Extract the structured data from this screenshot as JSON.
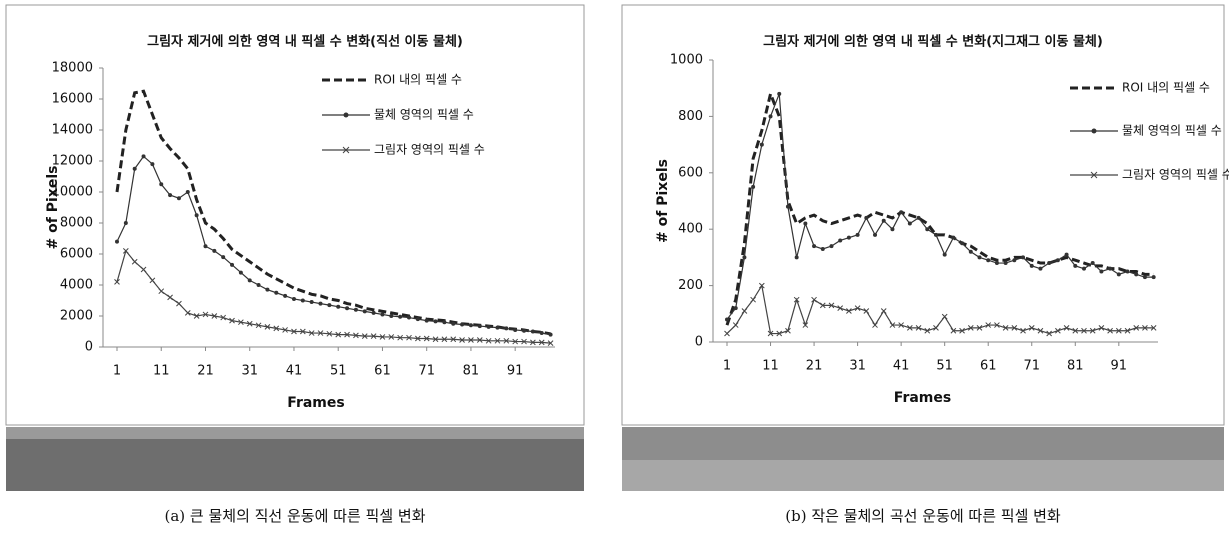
{
  "chart_data": [
    {
      "type": "line",
      "title": "그림자 제거에 의한 영역 내 픽셀 수 변화(직선 이동 물체)",
      "xlabel": "Frames",
      "ylabel": "# of Pixels",
      "caption": "(a) 큰 물체의 직선 운동에 따른 픽셀 변화",
      "legend": "upper right",
      "xlim": [
        1,
        100
      ],
      "xticks": [
        1,
        11,
        21,
        31,
        41,
        51,
        61,
        71,
        81,
        91
      ],
      "ylim": [
        0,
        18000
      ],
      "yticks": [
        0,
        2000,
        4000,
        6000,
        8000,
        10000,
        12000,
        14000,
        16000,
        18000
      ],
      "x": [
        1,
        3,
        5,
        7,
        9,
        11,
        13,
        15,
        17,
        19,
        21,
        23,
        25,
        27,
        29,
        31,
        33,
        35,
        37,
        39,
        41,
        43,
        45,
        47,
        49,
        51,
        53,
        55,
        57,
        59,
        61,
        63,
        65,
        67,
        69,
        71,
        73,
        75,
        77,
        79,
        81,
        83,
        85,
        87,
        89,
        91,
        93,
        95,
        97,
        99
      ],
      "series": [
        {
          "name": "ROI 내의 픽셀 수",
          "color": "#222222",
          "dash": true,
          "marker": "none",
          "values": [
            10000,
            14000,
            16400,
            16500,
            15000,
            13500,
            12800,
            12200,
            11500,
            9500,
            8000,
            7600,
            7000,
            6300,
            5900,
            5500,
            5100,
            4700,
            4400,
            4100,
            3800,
            3600,
            3400,
            3300,
            3100,
            3000,
            2800,
            2700,
            2500,
            2400,
            2300,
            2200,
            2100,
            2000,
            1900,
            1800,
            1750,
            1700,
            1600,
            1500,
            1450,
            1400,
            1350,
            1300,
            1200,
            1150,
            1100,
            1000,
            950,
            850
          ]
        },
        {
          "name": "물체 영역의 픽셀 수",
          "color": "#333333",
          "dash": false,
          "marker": "circle",
          "values": [
            6800,
            8000,
            11500,
            12300,
            11800,
            10500,
            9800,
            9600,
            10000,
            8500,
            6500,
            6200,
            5800,
            5300,
            4800,
            4300,
            4000,
            3700,
            3500,
            3300,
            3100,
            3000,
            2900,
            2800,
            2700,
            2600,
            2500,
            2400,
            2300,
            2200,
            2100,
            2000,
            1950,
            1900,
            1800,
            1700,
            1650,
            1600,
            1500,
            1450,
            1400,
            1350,
            1300,
            1250,
            1200,
            1100,
            1050,
            1000,
            900,
            800
          ]
        },
        {
          "name": "그림자 영역의 픽셀 수",
          "color": "#444444",
          "dash": false,
          "marker": "x",
          "values": [
            4200,
            6200,
            5500,
            5000,
            4300,
            3600,
            3200,
            2800,
            2200,
            2000,
            2100,
            2000,
            1900,
            1700,
            1600,
            1500,
            1400,
            1300,
            1200,
            1100,
            1000,
            1000,
            900,
            900,
            850,
            800,
            800,
            750,
            700,
            700,
            650,
            650,
            600,
            600,
            550,
            550,
            500,
            500,
            500,
            450,
            450,
            450,
            400,
            400,
            400,
            350,
            350,
            300,
            300,
            250
          ]
        }
      ]
    },
    {
      "type": "line",
      "title": "그림자 제거에 의한 영역 내 픽셀 수 변화(지그재그 이동 물체)",
      "xlabel": "Frames",
      "ylabel": "# of Pixels",
      "caption": "(b) 작은 물체의 곡선 운동에 따른 픽셀 변화",
      "legend": "upper right",
      "xlim": [
        1,
        100
      ],
      "xticks": [
        1,
        11,
        21,
        31,
        41,
        51,
        61,
        71,
        81,
        91
      ],
      "ylim": [
        0,
        1000
      ],
      "yticks": [
        0,
        200,
        400,
        600,
        800,
        1000
      ],
      "x": [
        1,
        3,
        5,
        7,
        9,
        11,
        13,
        15,
        17,
        19,
        21,
        23,
        25,
        27,
        29,
        31,
        33,
        35,
        37,
        39,
        41,
        43,
        45,
        47,
        49,
        51,
        53,
        55,
        57,
        59,
        61,
        63,
        65,
        67,
        69,
        71,
        73,
        75,
        77,
        79,
        81,
        83,
        85,
        87,
        89,
        91,
        93,
        95,
        97,
        99
      ],
      "series": [
        {
          "name": "ROI 내의 픽셀 수",
          "color": "#222222",
          "dash": true,
          "marker": "none",
          "values": [
            60,
            150,
            350,
            650,
            750,
            880,
            800,
            500,
            420,
            440,
            450,
            430,
            420,
            430,
            440,
            450,
            440,
            460,
            450,
            440,
            460,
            450,
            440,
            420,
            380,
            380,
            370,
            350,
            340,
            320,
            300,
            290,
            290,
            300,
            300,
            290,
            280,
            280,
            290,
            300,
            290,
            280,
            270,
            270,
            260,
            260,
            250,
            250,
            240,
            240
          ]
        },
        {
          "name": "물체 영역의 픽셀 수",
          "color": "#333333",
          "dash": false,
          "marker": "circle",
          "values": [
            80,
            120,
            300,
            550,
            700,
            800,
            880,
            480,
            300,
            420,
            340,
            330,
            340,
            360,
            370,
            380,
            440,
            380,
            430,
            400,
            460,
            420,
            440,
            400,
            380,
            310,
            370,
            350,
            320,
            300,
            290,
            280,
            280,
            290,
            300,
            270,
            260,
            280,
            290,
            310,
            270,
            260,
            280,
            250,
            260,
            240,
            250,
            240,
            230,
            230
          ]
        },
        {
          "name": "그림자 영역의 픽셀 수",
          "color": "#444444",
          "dash": false,
          "marker": "x",
          "values": [
            30,
            60,
            110,
            150,
            200,
            30,
            30,
            40,
            150,
            60,
            150,
            130,
            130,
            120,
            110,
            120,
            110,
            60,
            110,
            60,
            60,
            50,
            50,
            40,
            50,
            90,
            40,
            40,
            50,
            50,
            60,
            60,
            50,
            50,
            40,
            50,
            40,
            30,
            40,
            50,
            40,
            40,
            40,
            50,
            40,
            40,
            40,
            50,
            50,
            50
          ]
        }
      ]
    }
  ]
}
